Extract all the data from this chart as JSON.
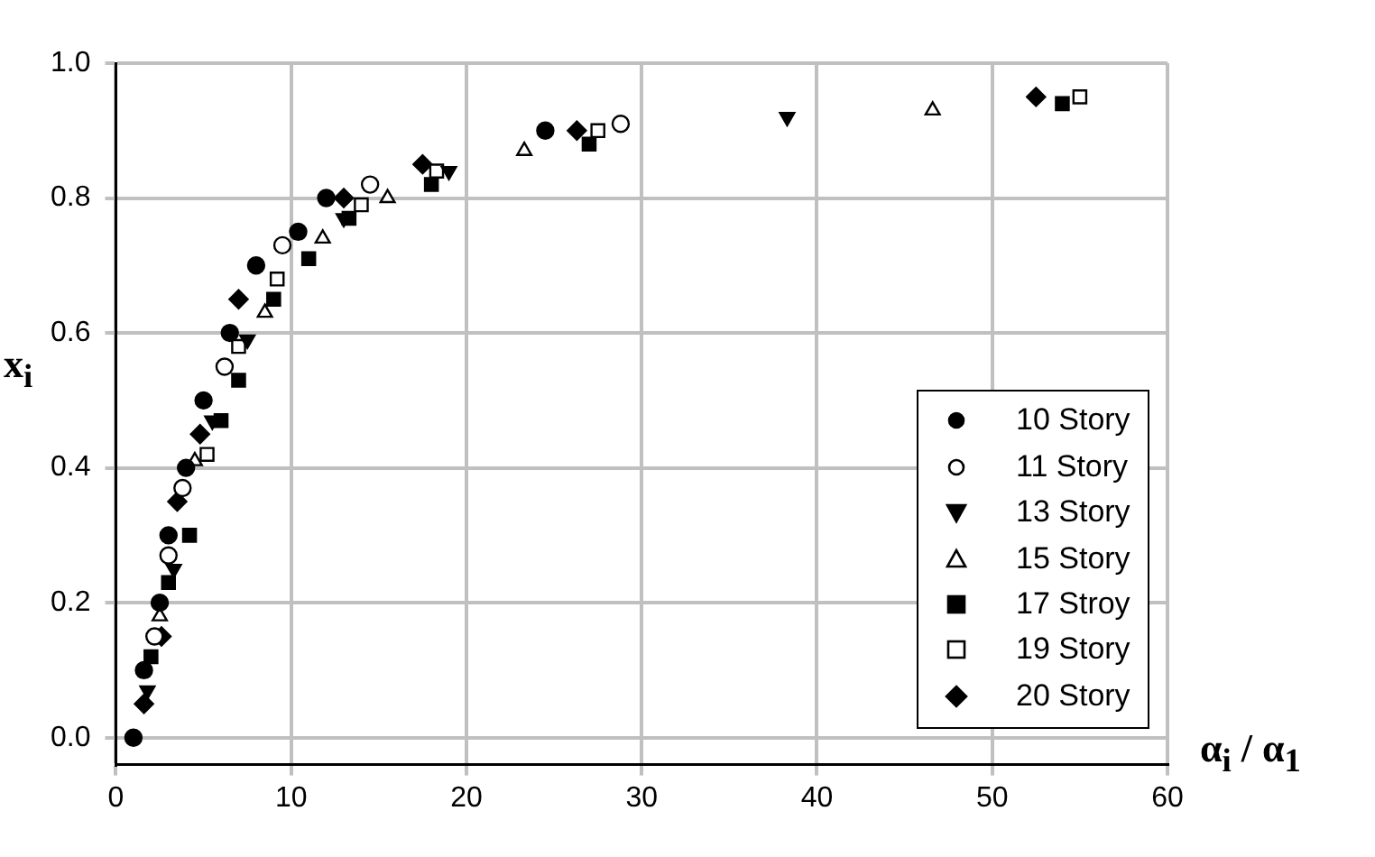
{
  "chart_data": {
    "type": "scatter",
    "xlabel": "α$_{i}$ / α$_{1}$",
    "ylabel": "x$_{i}$",
    "xlim": [
      0,
      60
    ],
    "ylim": [
      -0.04,
      1.0
    ],
    "xticks": [
      0,
      10,
      20,
      30,
      40,
      50,
      60
    ],
    "yticks": [
      {
        "value": 0,
        "label": "0.0"
      },
      0.2,
      0.4,
      0.6,
      0.8,
      {
        "value": 1,
        "label": "1.0"
      }
    ],
    "grid": true,
    "legend": "right",
    "series": [
      {
        "name": "10 Story",
        "color": "#000000",
        "marker": "circle",
        "x": [
          1,
          1.6,
          2.5,
          3,
          4,
          5,
          6.5,
          8,
          10.4,
          12,
          24.5
        ],
        "values": [
          0,
          0.1,
          0.2,
          0.3,
          0.4,
          0.5,
          0.6,
          0.7,
          0.75,
          0.8,
          0.9
        ]
      },
      {
        "name": "11 Story",
        "color": "#ffffff",
        "marker": "circle",
        "x": [
          2.2,
          3,
          3.8,
          6.2,
          9.5,
          14.5,
          28.8
        ],
        "values": [
          0.15,
          0.27,
          0.37,
          0.55,
          0.73,
          0.82,
          0.91
        ]
      },
      {
        "name": "13 Story",
        "color": "#000000",
        "marker": "triangle",
        "x": [
          1.8,
          3.3,
          5.5,
          7.5,
          13,
          19,
          38.3
        ],
        "values": [
          0.07,
          0.25,
          0.47,
          0.59,
          0.77,
          0.84,
          0.92
        ]
      },
      {
        "name": "15 Story",
        "color": "#ffffff",
        "marker": "triangle",
        "x": [
          2.5,
          4.5,
          8.5,
          11.8,
          15.5,
          23.3,
          46.6
        ],
        "values": [
          0.18,
          0.41,
          0.63,
          0.74,
          0.8,
          0.87,
          0.93
        ]
      },
      {
        "name": "17 Stroy",
        "color": "#000000",
        "marker": "square",
        "x": [
          2,
          3,
          4.2,
          6,
          7,
          9,
          11,
          13.3,
          18,
          27,
          54
        ],
        "values": [
          0.12,
          0.23,
          0.3,
          0.47,
          0.53,
          0.65,
          0.71,
          0.77,
          0.82,
          0.88,
          0.94
        ]
      },
      {
        "name": "19 Story",
        "color": "#ffffff",
        "marker": "square",
        "x": [
          5.2,
          7,
          9.2,
          14,
          18.3,
          27.5,
          55
        ],
        "values": [
          0.42,
          0.58,
          0.68,
          0.79,
          0.84,
          0.9,
          0.95
        ]
      },
      {
        "name": "20 Story",
        "color": "#000000",
        "marker": "diamond",
        "x": [
          1.6,
          2.6,
          3.5,
          4.8,
          7,
          13,
          17.5,
          26.3,
          52.5
        ],
        "values": [
          0.05,
          0.15,
          0.35,
          0.45,
          0.65,
          0.8,
          0.85,
          0.9,
          0.95
        ]
      }
    ]
  }
}
